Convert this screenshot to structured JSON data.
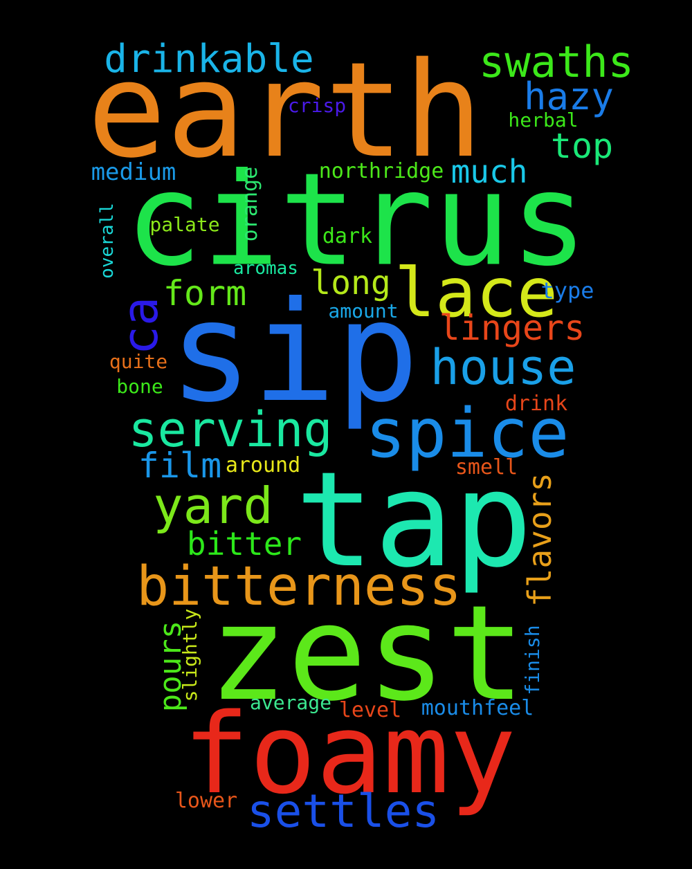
{
  "background": "#000000",
  "words": [
    {
      "text": "earth",
      "color": "#E8821A"
    },
    {
      "text": "citrus",
      "color": "#1DE34A"
    },
    {
      "text": "sip",
      "color": "#1F6FE8"
    },
    {
      "text": "tap",
      "color": "#1DE8B0"
    },
    {
      "text": "zest",
      "color": "#5CE81A"
    },
    {
      "text": "foamy",
      "color": "#E8281A"
    },
    {
      "text": "lace",
      "color": "#D4E81A"
    },
    {
      "text": "spice",
      "color": "#1A8CE8"
    },
    {
      "text": "bitterness",
      "color": "#E8961A"
    },
    {
      "text": "house",
      "color": "#1AA0E8"
    },
    {
      "text": "serving",
      "color": "#1AE8A0"
    },
    {
      "text": "yard",
      "color": "#7CE81A"
    },
    {
      "text": "settles",
      "color": "#1A50E8"
    },
    {
      "text": "drinkable",
      "color": "#1AB4E8"
    },
    {
      "text": "swaths",
      "color": "#3CE81A"
    },
    {
      "text": "hazy",
      "color": "#1A7CE8"
    },
    {
      "text": "top",
      "color": "#1AE878"
    },
    {
      "text": "much",
      "color": "#1AC8E8"
    },
    {
      "text": "lingers",
      "color": "#E8461A"
    },
    {
      "text": "long",
      "color": "#B4E81A"
    },
    {
      "text": "form",
      "color": "#64E81A"
    },
    {
      "text": "film",
      "color": "#1A96E8"
    },
    {
      "text": "bitter",
      "color": "#2CE81A"
    },
    {
      "text": "flavors",
      "color": "#E8A01A"
    },
    {
      "text": "ca",
      "color": "#2A1AE8"
    },
    {
      "text": "pours",
      "color": "#4CE81A"
    },
    {
      "text": "crisp",
      "color": "#4A1AE8"
    },
    {
      "text": "herbal",
      "color": "#3CE81A"
    },
    {
      "text": "medium",
      "color": "#1A9AE8"
    },
    {
      "text": "northridge",
      "color": "#4CE81A"
    },
    {
      "text": "orange",
      "color": "#2CE870"
    },
    {
      "text": "palate",
      "color": "#8CE81A"
    },
    {
      "text": "dark",
      "color": "#3CE81A"
    },
    {
      "text": "overall",
      "color": "#1AD8D8"
    },
    {
      "text": "aromas",
      "color": "#1AE8A0"
    },
    {
      "text": "type",
      "color": "#1A7CE8"
    },
    {
      "text": "amount",
      "color": "#1AA8E8"
    },
    {
      "text": "quite",
      "color": "#E8701A"
    },
    {
      "text": "bone",
      "color": "#3CE81A"
    },
    {
      "text": "drink",
      "color": "#E8461A"
    },
    {
      "text": "around",
      "color": "#E8E81A"
    },
    {
      "text": "smell",
      "color": "#E8561A"
    },
    {
      "text": "slightly",
      "color": "#C8E81A"
    },
    {
      "text": "finish",
      "color": "#1A8CE8"
    },
    {
      "text": "average",
      "color": "#3CE890"
    },
    {
      "text": "level",
      "color": "#E8461A"
    },
    {
      "text": "mouthfeel",
      "color": "#1A8CE8"
    },
    {
      "text": "lower",
      "color": "#E8561A"
    }
  ]
}
